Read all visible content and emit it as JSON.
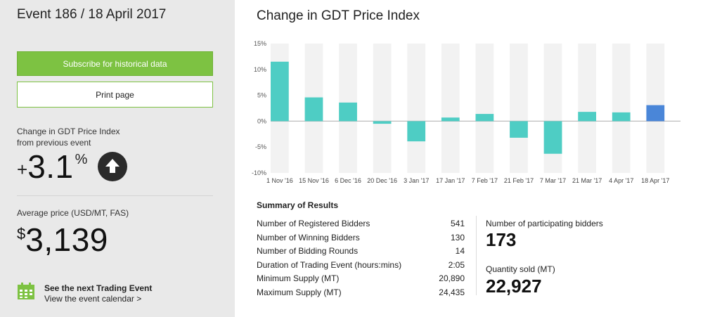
{
  "sidebar": {
    "event_title": "Event 186 / 18 April 2017",
    "subscribe_label": "Subscribe for historical data",
    "print_label": "Print page",
    "change_label_line1": "Change in GDT Price Index",
    "change_label_line2": "from previous event",
    "change_sign": "+",
    "change_value": "3.1",
    "change_unit": "%",
    "change_direction_icon": "arrow-up-circle-icon",
    "avg_label": "Average price (USD/MT, FAS)",
    "avg_currency": "$",
    "avg_value": "3,139",
    "next_event_title": "See the next Trading Event",
    "next_event_link": "View the event calendar >",
    "calendar_icon": "calendar-icon"
  },
  "chart_title": "Change in GDT Price Index",
  "chart_data": {
    "type": "bar",
    "categories": [
      "1 Nov '16",
      "15 Nov '16",
      "6 Dec '16",
      "20 Dec '16",
      "3 Jan '17",
      "17 Jan '17",
      "7 Feb '17",
      "21 Feb '17",
      "7 Mar '17",
      "21 Mar '17",
      "4 Apr '17",
      "18 Apr '17"
    ],
    "values": [
      11.5,
      4.6,
      3.6,
      -0.5,
      -3.9,
      0.7,
      1.4,
      -3.2,
      -6.3,
      1.8,
      1.7,
      3.1
    ],
    "ylim": [
      -10,
      15
    ],
    "yticks": [
      "15%",
      "10%",
      "5%",
      "0%",
      "-5%",
      "-10%"
    ],
    "colors": {
      "bar": "#4ecdc4",
      "highlight": "#4a86d8"
    }
  },
  "summary": {
    "title": "Summary of Results",
    "rows": [
      {
        "label": "Number of Registered Bidders",
        "value": "541"
      },
      {
        "label": "Number of Winning Bidders",
        "value": "130"
      },
      {
        "label": "Number of Bidding Rounds",
        "value": "14"
      },
      {
        "label": "Duration of Trading Event (hours:mins)",
        "value": "2:05"
      },
      {
        "label": "Minimum Supply (MT)",
        "value": "20,890"
      },
      {
        "label": "Maximum Supply (MT)",
        "value": "24,435"
      }
    ],
    "participating_label": "Number of participating bidders",
    "participating_value": "173",
    "quantity_label": "Quantity sold (MT)",
    "quantity_value": "22,927"
  }
}
